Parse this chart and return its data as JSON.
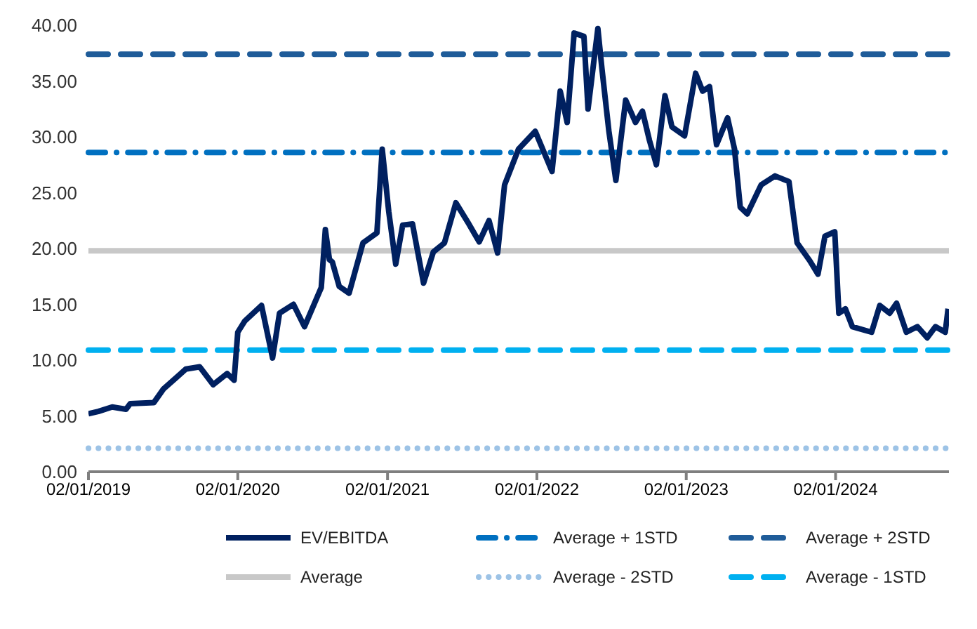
{
  "chart_data": {
    "type": "line",
    "x": [
      "2019-01-02",
      "2019-01-26",
      "2019-03-01",
      "2019-04-04",
      "2019-04-14",
      "2019-06-11",
      "2019-07-04",
      "2019-08-28",
      "2019-10-01",
      "2019-11-03",
      "2019-12-07",
      "2019-12-24",
      "2020-01-02",
      "2020-01-19",
      "2020-02-29",
      "2020-03-27",
      "2020-04-13",
      "2020-05-17",
      "2020-06-13",
      "2020-07-24",
      "2020-08-03",
      "2020-08-13",
      "2020-08-20",
      "2020-09-06",
      "2020-09-30",
      "2020-11-03",
      "2020-12-07",
      "2020-12-20",
      "2021-01-05",
      "2021-01-22",
      "2021-02-08",
      "2021-03-04",
      "2021-03-31",
      "2021-04-24",
      "2021-05-21",
      "2021-06-18",
      "2021-07-18",
      "2021-08-14",
      "2021-09-07",
      "2021-09-28",
      "2021-10-15",
      "2021-11-18",
      "2021-12-29",
      "2022-02-08",
      "2022-02-28",
      "2022-03-17",
      "2022-04-03",
      "2022-04-27",
      "2022-05-07",
      "2022-05-31",
      "2022-06-10",
      "2022-06-27",
      "2022-07-14",
      "2022-08-07",
      "2022-08-31",
      "2022-09-17",
      "2022-10-04",
      "2022-10-21",
      "2022-11-11",
      "2022-11-28",
      "2022-12-29",
      "2023-01-25",
      "2023-02-11",
      "2023-02-28",
      "2023-03-17",
      "2023-04-13",
      "2023-04-30",
      "2023-05-14",
      "2023-05-31",
      "2023-07-04",
      "2023-08-07",
      "2023-09-10",
      "2023-09-30",
      "2023-10-31",
      "2023-11-20",
      "2023-12-07",
      "2023-12-31",
      "2024-01-10",
      "2024-01-26",
      "2024-02-12",
      "2024-03-30",
      "2024-04-19",
      "2024-05-13",
      "2024-05-30",
      "2024-06-23",
      "2024-07-20",
      "2024-08-13",
      "2024-09-02",
      "2024-09-26",
      "2024-10-03"
    ],
    "series": [
      {
        "name": "EV/EBITDA",
        "color": "#002060",
        "values": [
          5.2,
          5.4,
          5.8,
          5.6,
          6.1,
          6.2,
          7.4,
          9.2,
          9.4,
          7.8,
          8.8,
          8.2,
          12.5,
          13.5,
          14.9,
          10.2,
          14.2,
          15,
          13,
          16.5,
          21.7,
          19,
          18.8,
          16.6,
          16,
          20.5,
          21.4,
          28.9,
          23.3,
          18.6,
          22.1,
          22.2,
          16.9,
          19.7,
          20.5,
          24.1,
          22.3,
          20.6,
          22.5,
          19.6,
          25.7,
          28.9,
          30.5,
          26.9,
          34.1,
          31.3,
          39.3,
          39,
          32.5,
          39.7,
          36.1,
          30.5,
          26.1,
          33.3,
          31.3,
          32.3,
          29.7,
          27.5,
          33.7,
          30.9,
          30.1,
          35.7,
          34.1,
          34.5,
          29.3,
          31.7,
          28.9,
          23.7,
          23.1,
          25.7,
          26.5,
          26,
          20.5,
          18.9,
          17.7,
          21.1,
          21.5,
          14.2,
          14.6,
          13,
          12.5,
          14.9,
          14.2,
          15.1,
          12.5,
          13,
          12,
          13,
          12.5,
          14.6
        ]
      }
    ],
    "xlim": [
      "2019-01-02",
      "2024-10-05"
    ],
    "xticks": [
      {
        "value": "2019-01-02",
        "label": "02/01/2019"
      },
      {
        "value": "2020-01-02",
        "label": "02/01/2020"
      },
      {
        "value": "2021-01-02",
        "label": "02/01/2021"
      },
      {
        "value": "2022-01-02",
        "label": "02/01/2022"
      },
      {
        "value": "2023-01-02",
        "label": "02/01/2023"
      },
      {
        "value": "2024-01-02",
        "label": "02/01/2024"
      }
    ],
    "ylim": [
      0,
      40
    ],
    "yticks": [
      {
        "value": 0,
        "label": "0.00"
      },
      {
        "value": 5,
        "label": "5.00"
      },
      {
        "value": 10,
        "label": "10.00"
      },
      {
        "value": 15,
        "label": "15.00"
      },
      {
        "value": 20,
        "label": "20.00"
      },
      {
        "value": 25,
        "label": "25.00"
      },
      {
        "value": 30,
        "label": "30.00"
      },
      {
        "value": 35,
        "label": "35.00"
      },
      {
        "value": 40,
        "label": "40.00"
      }
    ],
    "ref_lines": [
      {
        "axis": "y",
        "value": 28.6,
        "label": "Average + 1STD",
        "color": "#0070c0",
        "line_style": "dashdot"
      },
      {
        "axis": "y",
        "value": 37.4,
        "label": "Average + 2STD",
        "color": "#1f5c99",
        "line_style": "dashed"
      },
      {
        "axis": "y",
        "value": 19.8,
        "label": "Average",
        "color": "#c8c8c8",
        "line_style": "solid"
      },
      {
        "axis": "y",
        "value": 2.1,
        "label": "Average - 2STD",
        "color": "#9dc3e6",
        "line_style": "dotted"
      },
      {
        "axis": "y",
        "value": 10.9,
        "label": "Average - 1STD",
        "color": "#00b0f0",
        "line_style": "dashed"
      }
    ],
    "grid": false,
    "legend": "bottom",
    "line_style": "solid",
    "marker": "none"
  }
}
